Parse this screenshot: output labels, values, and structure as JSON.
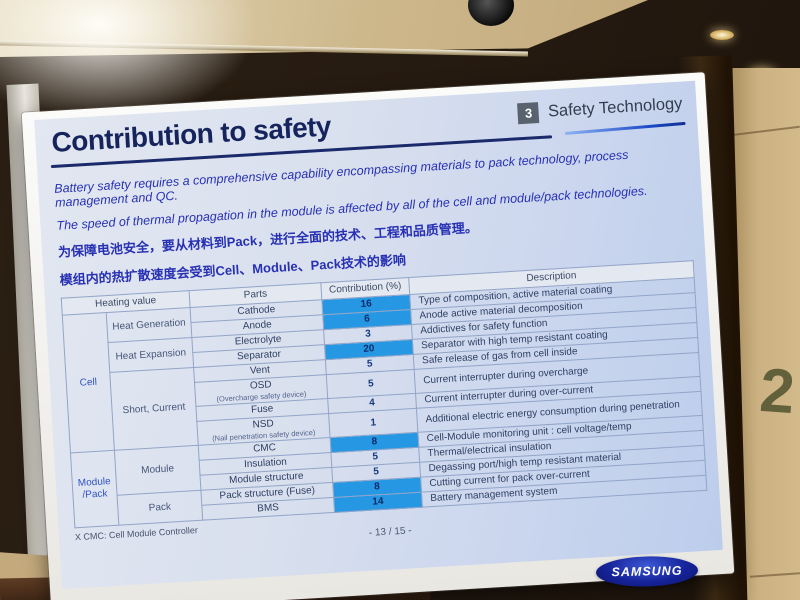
{
  "room": {
    "wall_number": "2"
  },
  "slide": {
    "header": {
      "title": "Contribution to safety",
      "badge_number": "3",
      "section_label": "Safety Technology"
    },
    "intro": [
      "Battery safety requires a comprehensive capability encompassing materials to pack technology, process management and QC.",
      "The speed of thermal propagation in the module is affected by all of the cell and module/pack technologies.",
      "为保障电池安全，要从材料到Pack，进行全面的技术、工程和品质管理。",
      "模组内的热扩散速度会受到Cell、Module、Pack技术的影响"
    ],
    "table": {
      "headers": {
        "heating_value": "Heating value",
        "parts": "Parts",
        "contribution": "Contribution (%)",
        "description": "Description"
      },
      "groups": {
        "cell": "Cell",
        "module_pack": "Module /Pack"
      },
      "subgroups": {
        "heat_generation": "Heat Generation",
        "heat_expansion": "Heat Expansion",
        "short_current": "Short, Current",
        "module": "Module",
        "pack": "Pack"
      },
      "rows": [
        {
          "part": "Cathode",
          "value": 16,
          "highlighted": true,
          "description": "Type of composition, active material coating"
        },
        {
          "part": "Anode",
          "value": 6,
          "highlighted": true,
          "description": "Anode active material decomposition"
        },
        {
          "part": "Electrolyte",
          "value": 3,
          "highlighted": false,
          "description": "Addictives for safety function"
        },
        {
          "part": "Separator",
          "value": 20,
          "highlighted": true,
          "description": "Separator with high temp resistant coating"
        },
        {
          "part": "Vent",
          "value": 5,
          "highlighted": false,
          "description": "Safe release of gas from cell inside"
        },
        {
          "part": "OSD",
          "part_sub": "(Overcharge safety device)",
          "value": 5,
          "highlighted": false,
          "description": "Current interrupter during overcharge"
        },
        {
          "part": "Fuse",
          "value": 4,
          "highlighted": false,
          "description": "Current interrupter during over-current"
        },
        {
          "part": "NSD",
          "part_sub": "(Nail penetration safety device)",
          "value": 1,
          "highlighted": false,
          "description": "Additional electric energy consumption during penetration"
        },
        {
          "part": "CMC",
          "value": 8,
          "highlighted": true,
          "description": "Cell-Module monitoring unit : cell voltage/temp"
        },
        {
          "part": "Insulation",
          "value": 5,
          "highlighted": false,
          "description": "Thermal/electrical insulation"
        },
        {
          "part": "Module structure",
          "value": 5,
          "highlighted": false,
          "description": "Degassing port/high temp resistant material"
        },
        {
          "part": "Pack structure (Fuse)",
          "value": 8,
          "highlighted": true,
          "description": "Cutting current for pack over-current"
        },
        {
          "part": "BMS",
          "value": 14,
          "highlighted": true,
          "description": "Battery management system"
        }
      ]
    },
    "footnote": "X CMC: Cell Module Controller",
    "page_number": "- 13 / 15 -",
    "logo_text": "SAMSUNG"
  }
}
